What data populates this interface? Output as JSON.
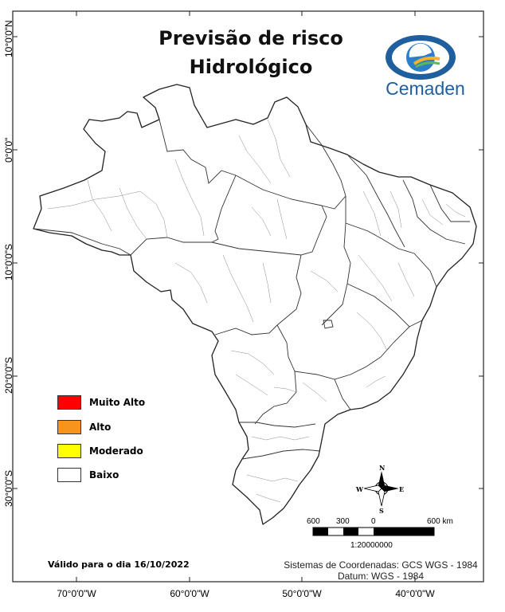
{
  "title": {
    "line1": "Previsão de risco",
    "line2": "Hidrológico"
  },
  "logo": {
    "text": "Cemaden"
  },
  "legend": [
    {
      "label": "Muito Alto",
      "color": "#ff0000"
    },
    {
      "label": "Alto",
      "color": "#f7941d"
    },
    {
      "label": "Moderado",
      "color": "#ffff00"
    },
    {
      "label": "Baixo",
      "color": "#ffffff"
    }
  ],
  "graticule": {
    "latitudes": [
      "10°0'0\"N",
      "0°0'0\"",
      "10°0'0\"S",
      "20°0'0\"S",
      "30°0'0\"S"
    ],
    "longitudes": [
      "70°0'0\"W",
      "60°0'0\"W",
      "50°0'0\"W",
      "40°0'0\"W"
    ]
  },
  "compass": {
    "north": "N",
    "south": "S",
    "east": "E",
    "west": "W"
  },
  "scale_bar": {
    "labels": [
      "600",
      "300",
      "0",
      "600 km"
    ],
    "ratio": "1:20000000"
  },
  "validity": "Válido para o dia 16/10/2022",
  "crs": {
    "line1": "Sistemas de Coordenadas: GCS WGS - 1984",
    "line2": "Datum: WGS - 1984"
  }
}
